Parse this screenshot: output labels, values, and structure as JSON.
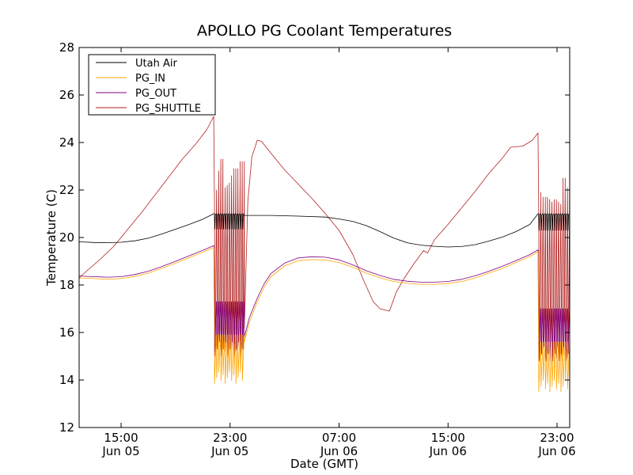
{
  "chart_data": {
    "type": "line",
    "title": "APOLLO PG Coolant Temperatures",
    "xlabel": "Date (GMT)",
    "ylabel": "Temperature (C)",
    "x_units": "hours since 00:00 Jun 05 (GMT)",
    "xlim": [
      11.92,
      47.93
    ],
    "ylim": [
      12,
      28
    ],
    "yticks": [
      12,
      14,
      16,
      18,
      20,
      22,
      24,
      26,
      28
    ],
    "xticks": [
      {
        "x": 15,
        "label1": "15:00",
        "label2": "Jun 05"
      },
      {
        "x": 23,
        "label1": "23:00",
        "label2": "Jun 05"
      },
      {
        "x": 31,
        "label1": "07:00",
        "label2": "Jun 06"
      },
      {
        "x": 39,
        "label1": "15:00",
        "label2": "Jun 06"
      },
      {
        "x": 47,
        "label1": "23:00",
        "label2": "Jun 06"
      }
    ],
    "grid": false,
    "legend": "top-left",
    "oscillation_windows": [
      {
        "start": 21.85,
        "end": 24.05,
        "cycles": 14
      },
      {
        "start": 45.65,
        "end": 47.93,
        "cycles": 14
      }
    ],
    "series": [
      {
        "name": "Utah Air",
        "color": "#000000",
        "smooth": [
          [
            11.92,
            19.82
          ],
          [
            13,
            19.79
          ],
          [
            14,
            19.78
          ],
          [
            15,
            19.8
          ],
          [
            16,
            19.86
          ],
          [
            17,
            19.97
          ],
          [
            18,
            20.15
          ],
          [
            19,
            20.35
          ],
          [
            20,
            20.55
          ],
          [
            21,
            20.77
          ],
          [
            21.8,
            21.0
          ]
        ],
        "osc_range": [
          20.35,
          21.0
        ],
        "smooth2": [
          [
            24.05,
            20.93
          ],
          [
            26,
            20.93
          ],
          [
            28,
            20.9
          ],
          [
            30,
            20.86
          ],
          [
            31,
            20.78
          ],
          [
            32,
            20.68
          ],
          [
            33,
            20.5
          ],
          [
            34,
            20.25
          ],
          [
            35,
            19.98
          ],
          [
            36,
            19.78
          ],
          [
            37,
            19.68
          ],
          [
            38,
            19.63
          ],
          [
            39,
            19.6
          ],
          [
            40,
            19.62
          ],
          [
            41,
            19.7
          ],
          [
            42,
            19.85
          ],
          [
            43,
            20.02
          ],
          [
            44,
            20.25
          ],
          [
            45,
            20.55
          ],
          [
            45.6,
            21.0
          ]
        ],
        "osc2_range": [
          20.3,
          21.0
        ]
      },
      {
        "name": "PG_IN",
        "color": "#ffa500",
        "smooth": [
          [
            11.92,
            18.3
          ],
          [
            13,
            18.27
          ],
          [
            14,
            18.24
          ],
          [
            15,
            18.27
          ],
          [
            16,
            18.36
          ],
          [
            17,
            18.5
          ],
          [
            18,
            18.7
          ],
          [
            19,
            18.92
          ],
          [
            20,
            19.15
          ],
          [
            21,
            19.38
          ],
          [
            21.8,
            19.58
          ]
        ],
        "osc_range": [
          13.85,
          15.9
        ],
        "smooth2": [
          [
            24.05,
            15.6
          ],
          [
            24.4,
            16.4
          ],
          [
            25,
            17.3
          ],
          [
            25.5,
            17.9
          ],
          [
            26,
            18.35
          ],
          [
            27,
            18.8
          ],
          [
            28,
            19.02
          ],
          [
            29,
            19.07
          ],
          [
            30,
            19.05
          ],
          [
            31,
            18.95
          ],
          [
            32,
            18.75
          ],
          [
            33,
            18.5
          ],
          [
            34,
            18.3
          ],
          [
            35,
            18.15
          ],
          [
            36,
            18.07
          ],
          [
            37,
            18.03
          ],
          [
            38,
            18.03
          ],
          [
            39,
            18.06
          ],
          [
            40,
            18.15
          ],
          [
            41,
            18.3
          ],
          [
            42,
            18.5
          ],
          [
            43,
            18.7
          ],
          [
            44,
            18.95
          ],
          [
            45,
            19.2
          ],
          [
            45.6,
            19.4
          ]
        ],
        "osc2_range": [
          13.5,
          15.6
        ]
      },
      {
        "name": "PG_OUT",
        "color": "#800080",
        "smooth": [
          [
            11.92,
            18.38
          ],
          [
            13,
            18.35
          ],
          [
            14,
            18.33
          ],
          [
            15,
            18.35
          ],
          [
            16,
            18.44
          ],
          [
            17,
            18.58
          ],
          [
            18,
            18.78
          ],
          [
            19,
            19.0
          ],
          [
            20,
            19.23
          ],
          [
            21,
            19.46
          ],
          [
            21.8,
            19.66
          ]
        ],
        "osc_range": [
          15.2,
          22.6
        ],
        "smooth2": [
          [
            24.05,
            15.8
          ],
          [
            24.4,
            16.6
          ],
          [
            25,
            17.45
          ],
          [
            25.5,
            18.05
          ],
          [
            26,
            18.48
          ],
          [
            27,
            18.92
          ],
          [
            28,
            19.14
          ],
          [
            29,
            19.19
          ],
          [
            30,
            19.17
          ],
          [
            31,
            19.06
          ],
          [
            32,
            18.85
          ],
          [
            33,
            18.6
          ],
          [
            34,
            18.4
          ],
          [
            35,
            18.24
          ],
          [
            36,
            18.16
          ],
          [
            37,
            18.12
          ],
          [
            38,
            18.12
          ],
          [
            39,
            18.15
          ],
          [
            40,
            18.24
          ],
          [
            41,
            18.39
          ],
          [
            42,
            18.58
          ],
          [
            43,
            18.79
          ],
          [
            44,
            19.03
          ],
          [
            45,
            19.28
          ],
          [
            45.6,
            19.48
          ]
        ],
        "osc2_range": [
          14.8,
          22.3
        ]
      },
      {
        "name": "PG_SHUTTLE",
        "color": "#b22222",
        "smooth": [
          [
            11.92,
            18.3
          ],
          [
            12.5,
            18.6
          ],
          [
            13.5,
            19.1
          ],
          [
            14.5,
            19.65
          ],
          [
            15.5,
            20.35
          ],
          [
            16.5,
            21.05
          ],
          [
            17.5,
            21.8
          ],
          [
            18.5,
            22.55
          ],
          [
            19.5,
            23.3
          ],
          [
            20.5,
            23.95
          ],
          [
            21.3,
            24.55
          ],
          [
            21.8,
            25.1
          ]
        ],
        "osc_peaks": [
          21.7,
          22.0,
          22.8,
          23.3,
          21.6,
          22.1,
          22.2,
          22.3,
          22.6,
          22.9,
          22.9,
          22.4,
          23.2,
          23.2
        ],
        "osc_range": [
          15.0,
          23.3
        ],
        "smooth2": [
          [
            24.05,
            16.2
          ],
          [
            24.3,
            21.5
          ],
          [
            24.6,
            23.4
          ],
          [
            25.0,
            24.1
          ],
          [
            25.3,
            24.05
          ],
          [
            26,
            23.55
          ],
          [
            27,
            22.85
          ],
          [
            28,
            22.25
          ],
          [
            29,
            21.65
          ],
          [
            30,
            21.0
          ],
          [
            31,
            20.3
          ],
          [
            32,
            19.3
          ],
          [
            32.8,
            18.2
          ],
          [
            33.5,
            17.3
          ],
          [
            34,
            17.0
          ],
          [
            34.7,
            16.9
          ],
          [
            35.2,
            17.7
          ],
          [
            35.8,
            18.3
          ],
          [
            36.5,
            18.9
          ],
          [
            37.2,
            19.45
          ],
          [
            37.5,
            19.35
          ],
          [
            38,
            19.9
          ],
          [
            39,
            20.55
          ],
          [
            40,
            21.25
          ],
          [
            41,
            21.95
          ],
          [
            42,
            22.7
          ],
          [
            43,
            23.35
          ],
          [
            43.6,
            23.8
          ],
          [
            44.5,
            23.85
          ],
          [
            45.2,
            24.1
          ],
          [
            45.6,
            24.4
          ]
        ],
        "osc2_peaks": [
          21.9,
          21.7,
          21.2,
          21.7,
          21.6,
          21.5,
          21.4,
          21.6,
          21.5,
          21.3,
          21.4,
          22.5,
          21.6,
          22.1
        ],
        "osc2_range": [
          14.8,
          22.5
        ]
      }
    ]
  }
}
